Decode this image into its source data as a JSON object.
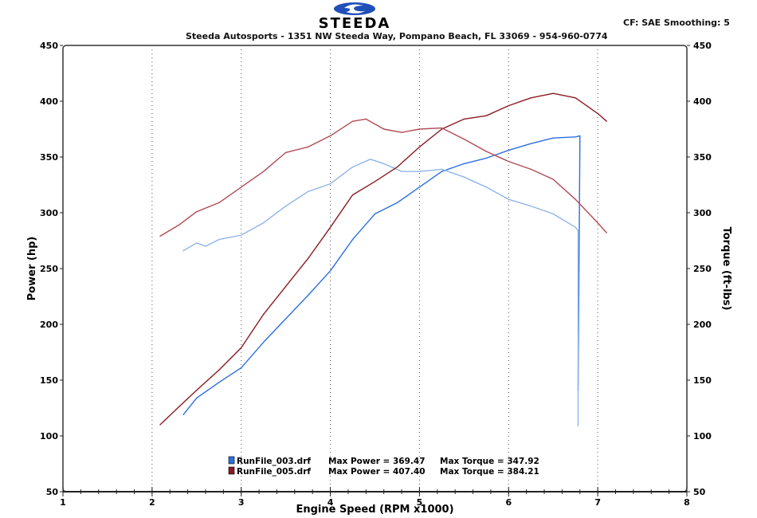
{
  "header": {
    "logo_text": "STEEDA",
    "company_line": "Steeda Autosports - 1351 NW Steeda Way, Pompano Beach, FL 33069 - 954-960-0774",
    "settings": "CF: SAE  Smoothing: 5"
  },
  "legend": [
    {
      "file": "RunFile_003.drf",
      "max_power": "Max Power = 369.47",
      "max_torque": "Max Torque = 347.92",
      "color": "#2a6fe0"
    },
    {
      "file": "RunFile_005.drf",
      "max_power": "Max Power = 407.40",
      "max_torque": "Max Torque = 384.21",
      "color": "#8b1a22"
    }
  ],
  "chart_data": {
    "type": "line",
    "xlabel": "Engine Speed (RPM x1000)",
    "ylabel": "Power (hp)",
    "y2label": "Torque (ft-lbs)",
    "xlim": [
      1,
      8
    ],
    "ylim": [
      50,
      450
    ],
    "y2lim": [
      50,
      450
    ],
    "xticks": [
      "1",
      "2",
      "3",
      "4",
      "5",
      "6",
      "7",
      "8"
    ],
    "yticks": [
      "50",
      "100",
      "150",
      "200",
      "250",
      "300",
      "350",
      "400",
      "450"
    ],
    "grid": "vertical dotted",
    "legend_position": "bottom-center",
    "series": [
      {
        "file": "RunFile_003.drf",
        "measure": "power",
        "axis": "left",
        "color": "#2a6fe0",
        "x": [
          2.35,
          2.5,
          2.75,
          3.0,
          3.25,
          3.5,
          3.75,
          4.0,
          4.25,
          4.5,
          4.75,
          5.0,
          5.25,
          5.5,
          5.75,
          6.0,
          6.25,
          6.5,
          6.75,
          6.8,
          6.78
        ],
        "y": [
          119,
          134,
          148,
          161,
          184,
          205,
          226,
          248,
          276,
          299,
          309,
          323,
          337,
          344,
          349,
          356,
          362,
          367,
          368,
          369,
          141
        ]
      },
      {
        "file": "RunFile_003.drf",
        "measure": "torque",
        "axis": "right",
        "color": "#8fb4ea",
        "x": [
          2.35,
          2.5,
          2.6,
          2.75,
          3.0,
          3.25,
          3.5,
          3.75,
          4.0,
          4.25,
          4.45,
          4.6,
          4.8,
          5.0,
          5.25,
          5.5,
          5.75,
          6.0,
          6.25,
          6.5,
          6.75,
          6.78,
          6.78
        ],
        "y": [
          266,
          273,
          270,
          276,
          280,
          291,
          306,
          319,
          326,
          341,
          348,
          344,
          337,
          337,
          339,
          332,
          323,
          312,
          306,
          299,
          287,
          284,
          109
        ]
      },
      {
        "file": "RunFile_005.drf",
        "measure": "power",
        "axis": "left",
        "color": "#8b1a22",
        "x": [
          2.09,
          2.3,
          2.5,
          2.75,
          3.0,
          3.25,
          3.5,
          3.75,
          4.0,
          4.25,
          4.5,
          4.75,
          5.0,
          5.25,
          5.5,
          5.75,
          6.0,
          6.25,
          6.5,
          6.75,
          7.0,
          7.1
        ],
        "y": [
          110,
          126,
          141,
          159,
          179,
          209,
          234,
          259,
          287,
          316,
          328,
          341,
          359,
          375,
          384,
          387,
          396,
          403,
          407,
          403,
          389,
          382
        ]
      },
      {
        "file": "RunFile_005.drf",
        "measure": "torque",
        "axis": "right",
        "color": "#b04a55",
        "x": [
          2.09,
          2.3,
          2.5,
          2.75,
          3.0,
          3.25,
          3.5,
          3.75,
          4.0,
          4.25,
          4.4,
          4.6,
          4.8,
          5.0,
          5.25,
          5.5,
          5.75,
          6.0,
          6.25,
          6.5,
          6.75,
          7.0,
          7.1
        ],
        "y": [
          279,
          289,
          301,
          309,
          323,
          337,
          354,
          359,
          369,
          382,
          384,
          375,
          372,
          375,
          376,
          366,
          355,
          346,
          339,
          330,
          312,
          291,
          282
        ]
      }
    ]
  }
}
